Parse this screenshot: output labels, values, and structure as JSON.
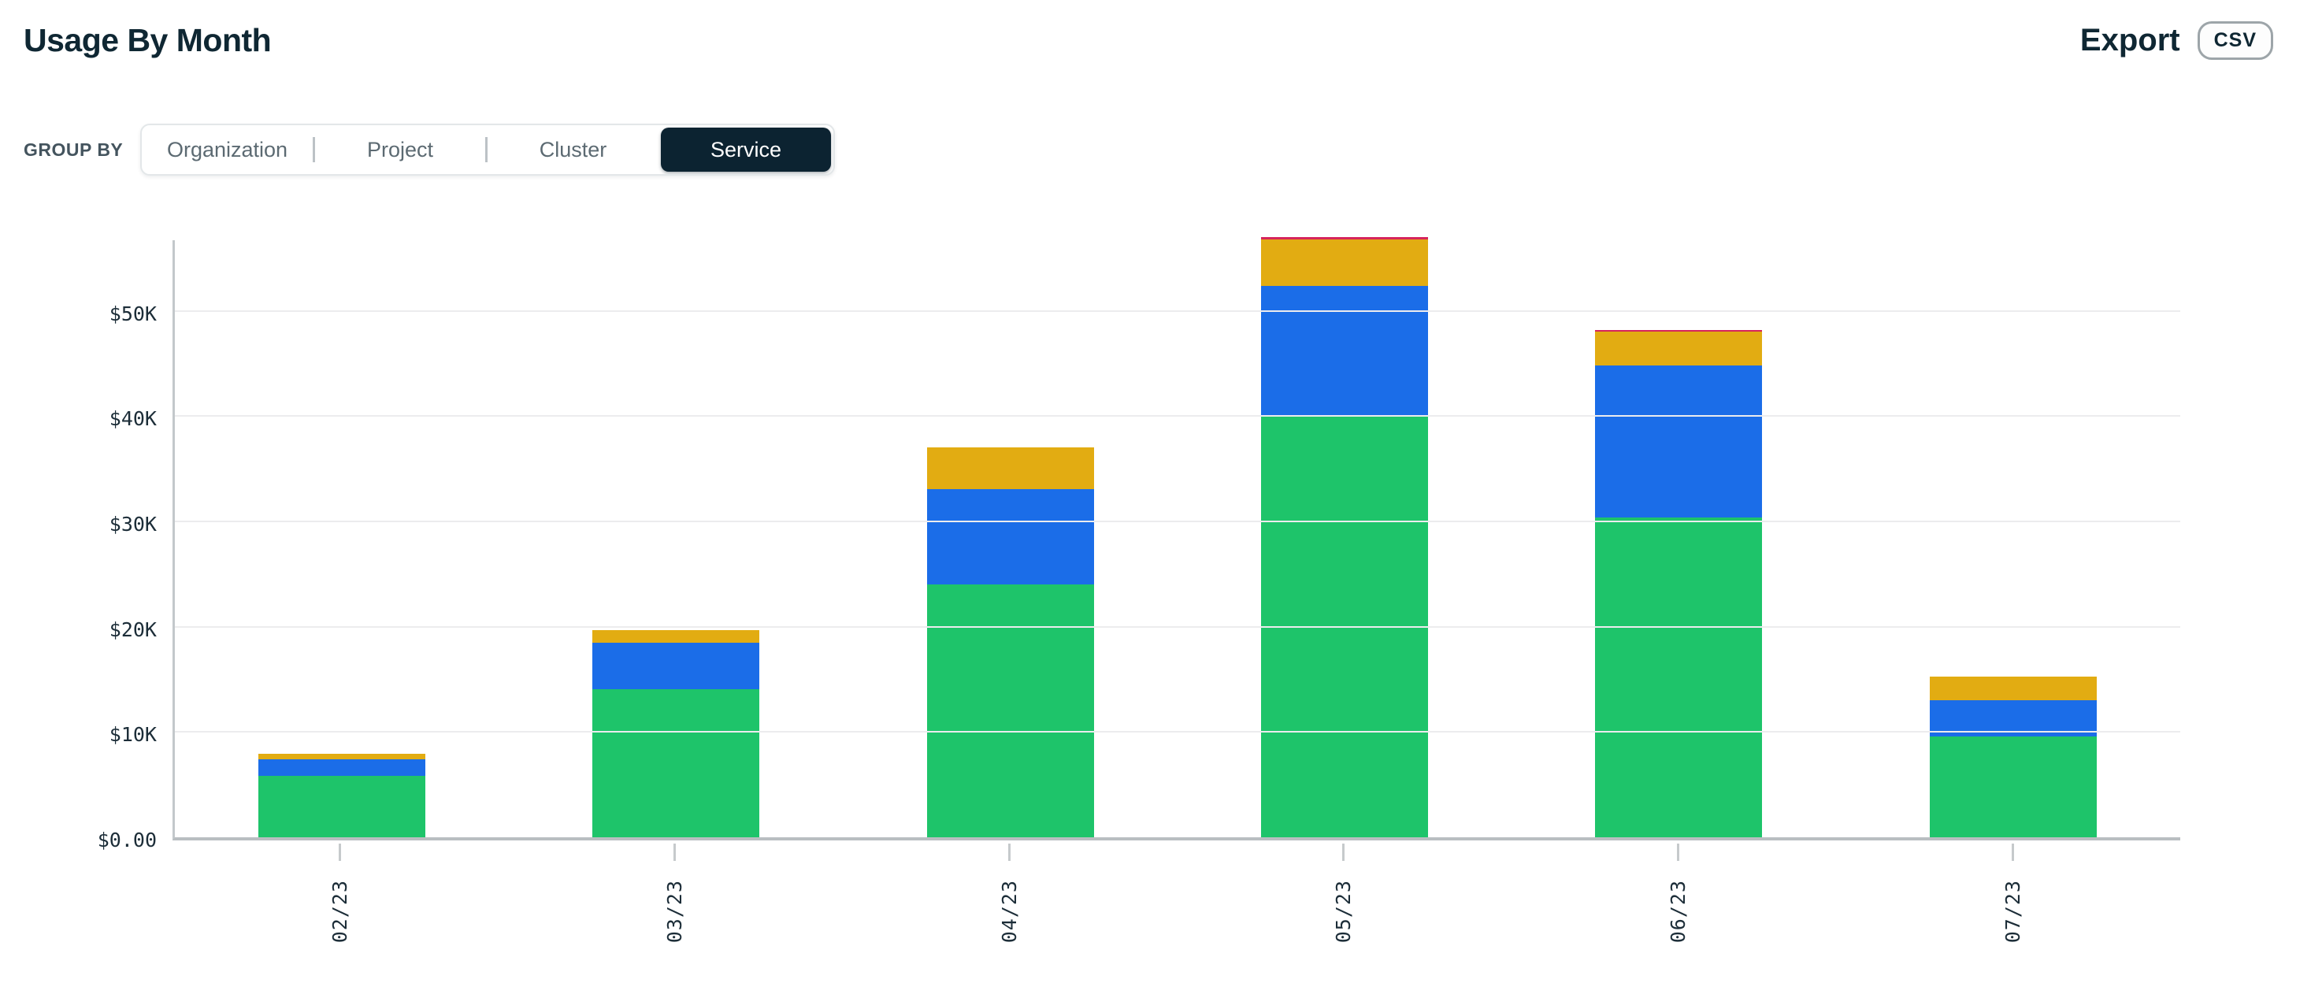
{
  "header": {
    "title": "Usage By Month",
    "export_label": "Export",
    "csv_button_label": "CSV"
  },
  "group_by": {
    "label": "GROUP BY",
    "options": [
      {
        "label": "Organization",
        "selected": false
      },
      {
        "label": "Project",
        "selected": false
      },
      {
        "label": "Cluster",
        "selected": false
      },
      {
        "label": "Service",
        "selected": true
      }
    ]
  },
  "chart_data": {
    "type": "bar",
    "stacked": true,
    "title": "Usage By Month",
    "categories": [
      "02/23",
      "03/23",
      "04/23",
      "05/23",
      "06/23",
      "07/23"
    ],
    "series": [
      {
        "name": "green-segment",
        "color": "#1EC46A",
        "values": [
          5.8,
          14.1,
          24.0,
          40.1,
          30.4,
          9.6
        ]
      },
      {
        "name": "blue-segment",
        "color": "#1B6DE8",
        "values": [
          1.6,
          4.4,
          9.1,
          12.3,
          14.4,
          3.4
        ]
      },
      {
        "name": "gold-segment",
        "color": "#E2AC12",
        "values": [
          0.5,
          1.2,
          3.9,
          4.4,
          3.2,
          2.3
        ]
      },
      {
        "name": "red-segment",
        "color": "#D6245B",
        "values": [
          0,
          0,
          0,
          0.2,
          0.2,
          0
        ]
      }
    ],
    "totals": [
      7.9,
      19.7,
      37.0,
      57.0,
      48.2,
      15.3
    ],
    "units": "USD thousands",
    "ylabel": "",
    "xlabel": "",
    "x_label_rotation": -90,
    "y_ticks": [
      {
        "value": 0,
        "label": "$0.00"
      },
      {
        "value": 10,
        "label": "$10K"
      },
      {
        "value": 20,
        "label": "$20K"
      },
      {
        "value": 30,
        "label": "$30K"
      },
      {
        "value": 40,
        "label": "$40K"
      },
      {
        "value": 50,
        "label": "$50K"
      }
    ],
    "ylim": [
      0,
      57
    ],
    "grid": "horizontal",
    "legend": "none"
  },
  "colors": {
    "accent_dark": "#0C2331",
    "bar_green": "#1EC46A",
    "bar_blue": "#1B6DE8",
    "bar_gold": "#E2AC12",
    "bar_red": "#D6245B",
    "muted_text": "#5C6A72",
    "axis_text": "#1C2D38"
  }
}
